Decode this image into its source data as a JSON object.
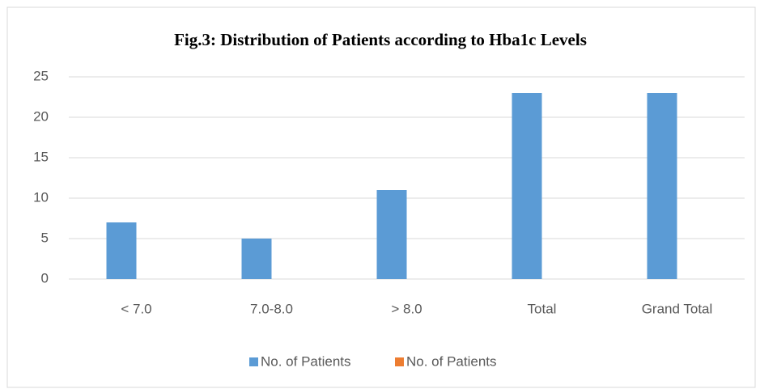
{
  "chart_data": {
    "type": "bar",
    "title": "Fig.3: Distribution of Patients according to Hba1c Levels",
    "categories": [
      "< 7.0",
      "7.0-8.0",
      "> 8.0",
      "Total",
      "Grand Total"
    ],
    "series": [
      {
        "name": "No. of Patients",
        "color": "#5b9bd5",
        "values": [
          7,
          5,
          11,
          23,
          23
        ]
      },
      {
        "name": "No. of Patients",
        "color": "#ed7d31",
        "values": [
          null,
          null,
          null,
          null,
          null
        ]
      }
    ],
    "ylim": [
      0,
      25
    ],
    "yticks": [
      0,
      5,
      10,
      15,
      20,
      25
    ],
    "grid": true,
    "legend": "bottom"
  }
}
